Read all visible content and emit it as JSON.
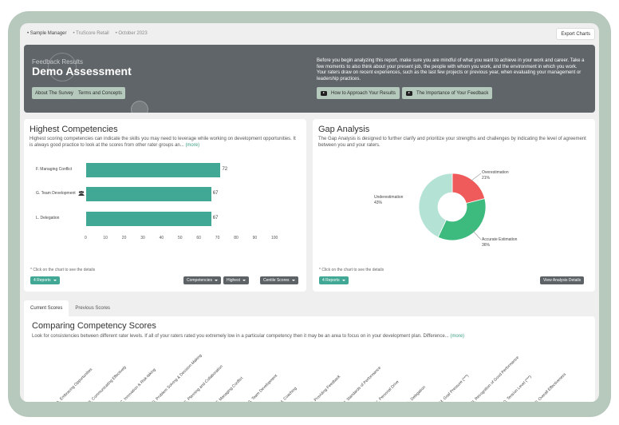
{
  "topbar": {
    "crumbs": [
      "• Sample Manager",
      "• TruScore Retail",
      "• October 2023"
    ],
    "export_label": "Export Charts"
  },
  "hero": {
    "subtitle": "Feedback Results",
    "title": "Demo Assessment",
    "btn_about": "About The Survey",
    "btn_terms": "Terms and Concepts",
    "intro": "Before you begin analyzing this report, make sure you are mindful of what you want to achieve in your work and career. Take a few moments to also think about your present job, the people with whom you work, and the environment in which you work. Your raters draw on recent experiences, such as the last few projects or previous year, when evaluating your management or leadership practices.",
    "video1": "How to Approach Your Results",
    "video2": "The Importance of Your Feedback"
  },
  "competencies": {
    "title": "Highest Competencies",
    "desc": "Highest scoring competencies can indicate the skills you may need to leverage while working on development opportunities. It is always good practice to look at the scores from other rater groups an...",
    "more": "(more)",
    "note": "* Click on the chart to see the details",
    "reports": "4 Reports",
    "filter1": "Competencies",
    "filter2": "Highest",
    "filter3": "Centile Scores"
  },
  "gap": {
    "title": "Gap Analysis",
    "desc": "The Gap Analysis is designed to further clarify and prioritize your strengths and challenges by indicating the level of agreement between you and your raters.",
    "note": "* Click on the chart to see the details",
    "reports": "4 Reports",
    "view_btn": "View Analysis Details"
  },
  "tabs": [
    "Current Scores",
    "Previous Scores"
  ],
  "comparing": {
    "title": "Comparing Competency Scores",
    "desc": "Look for consistencies between different rater levels. If all of your raters rated you extremely low in a particular competency then it may be an area to focus on in your development plan. Difference...",
    "more": "(more)",
    "labels": [
      "A. Embracing Opportunities",
      "B. Communicating Effectively",
      "C. Innovation & Risk-taking",
      "D. Problem Solving & Decision Making",
      "E. Planning and Collaboration",
      "F. Managing Conflict",
      "G. Team Development",
      "H. Coaching",
      "I. Providing Feedback",
      "J. Standards of Performance",
      "K. Personal Drive",
      "L. Delegation",
      "M. Goal Pressure (***)",
      "N. Recognition of Good Performance",
      "O. Tension Level (***)",
      "P. Overall Effectiveness"
    ]
  },
  "chart_data": [
    {
      "type": "bar",
      "orientation": "horizontal",
      "title": "Highest Competencies",
      "categories": [
        "F. Managing Conflict",
        "G. Team Development",
        "L. Delegation"
      ],
      "values": [
        72,
        67,
        67
      ],
      "xlim": [
        0,
        100
      ],
      "xticks": [
        0,
        10,
        20,
        30,
        40,
        50,
        60,
        70,
        80,
        90,
        100
      ],
      "color": "#41a895"
    },
    {
      "type": "pie",
      "title": "Gap Analysis",
      "slices": [
        {
          "name": "Overestimation",
          "value": 21,
          "label": "21%",
          "color": "#ef5b5b"
        },
        {
          "name": "Accurate Estimation",
          "value": 36,
          "label": "36%",
          "color": "#3dba7e"
        },
        {
          "name": "Underestimation",
          "value": 43,
          "label": "43%",
          "color": "#b4e2d4"
        }
      ]
    }
  ]
}
